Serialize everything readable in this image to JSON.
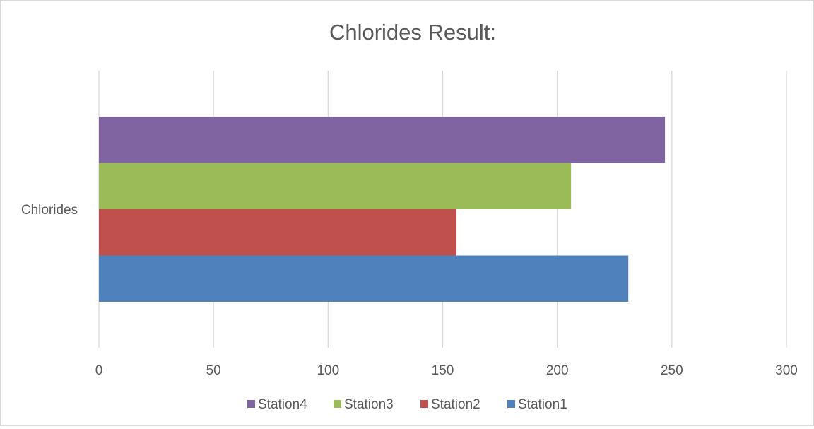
{
  "chart_data": {
    "type": "bar",
    "orientation": "horizontal",
    "title": "Chlorides Result:",
    "categories": [
      "Chlorides"
    ],
    "series": [
      {
        "name": "Station1",
        "values": [
          231
        ],
        "color": "#4F81BD"
      },
      {
        "name": "Station2",
        "values": [
          156
        ],
        "color": "#C0504D"
      },
      {
        "name": "Station3",
        "values": [
          206
        ],
        "color": "#9BBB59"
      },
      {
        "name": "Station4",
        "values": [
          247
        ],
        "color": "#8064A2"
      }
    ],
    "xlim": [
      0,
      300
    ],
    "xticks": [
      0,
      50,
      100,
      150,
      200,
      250,
      300
    ],
    "grid": "vertical",
    "legend_position": "bottom",
    "legend_order": [
      "Station4",
      "Station3",
      "Station2",
      "Station1"
    ],
    "gridline_color": "#d9d9d9"
  }
}
